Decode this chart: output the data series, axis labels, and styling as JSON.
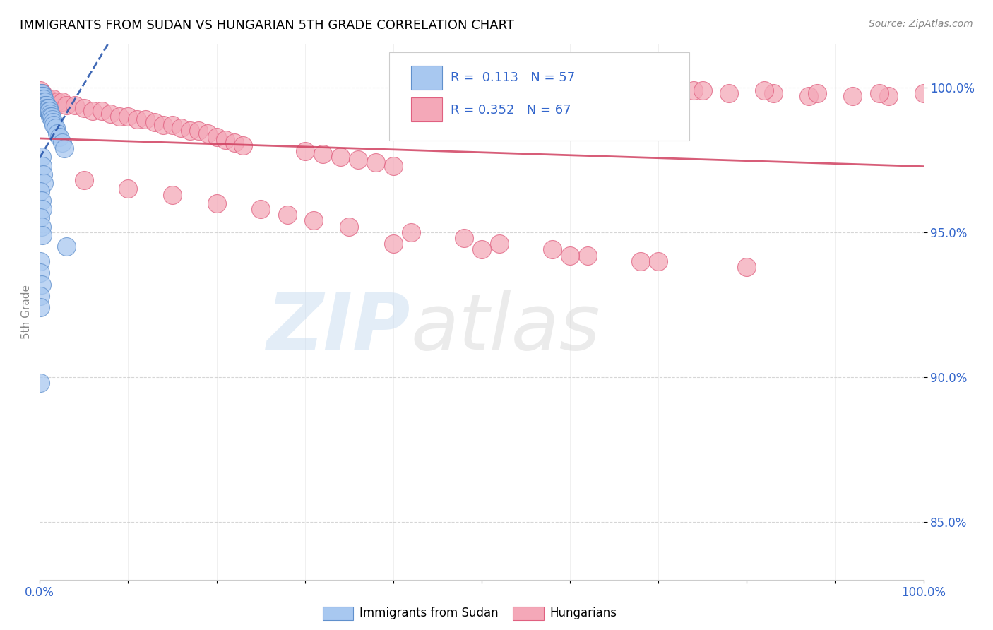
{
  "title": "IMMIGRANTS FROM SUDAN VS HUNGARIAN 5TH GRADE CORRELATION CHART",
  "source": "Source: ZipAtlas.com",
  "ylabel": "5th Grade",
  "yticks": [
    0.85,
    0.9,
    0.95,
    1.0
  ],
  "ytick_labels": [
    "85.0%",
    "90.0%",
    "95.0%",
    "100.0%"
  ],
  "xticks": [
    0.0,
    0.1,
    0.2,
    0.3,
    0.4,
    0.5,
    0.6,
    0.7,
    0.8,
    0.9,
    1.0
  ],
  "xlim": [
    0.0,
    1.0
  ],
  "ylim": [
    0.83,
    1.015
  ],
  "legend_r_blue": "R =  0.113",
  "legend_n_blue": "N = 57",
  "legend_r_pink": "R = 0.352",
  "legend_n_pink": "N = 67",
  "blue_color": "#A8C8F0",
  "pink_color": "#F4A8B8",
  "blue_edge": "#6090CC",
  "pink_edge": "#E06080",
  "trend_blue_color": "#2050AA",
  "trend_pink_color": "#D04060",
  "watermark_zip": "ZIP",
  "watermark_atlas": "atlas",
  "blue_x": [
    0.001,
    0.001,
    0.001,
    0.002,
    0.002,
    0.002,
    0.002,
    0.003,
    0.003,
    0.003,
    0.004,
    0.004,
    0.004,
    0.004,
    0.005,
    0.005,
    0.005,
    0.006,
    0.006,
    0.006,
    0.007,
    0.007,
    0.008,
    0.008,
    0.009,
    0.009,
    0.01,
    0.01,
    0.011,
    0.012,
    0.012,
    0.013,
    0.014,
    0.015,
    0.016,
    0.018,
    0.02,
    0.022,
    0.025,
    0.028,
    0.002,
    0.003,
    0.004,
    0.005,
    0.001,
    0.002,
    0.003,
    0.001,
    0.002,
    0.003,
    0.03,
    0.001,
    0.001,
    0.002,
    0.001,
    0.001,
    0.001
  ],
  "blue_y": [
    0.998,
    0.997,
    0.996,
    0.998,
    0.997,
    0.996,
    0.995,
    0.997,
    0.996,
    0.995,
    0.997,
    0.996,
    0.995,
    0.994,
    0.996,
    0.995,
    0.994,
    0.995,
    0.994,
    0.993,
    0.994,
    0.993,
    0.994,
    0.993,
    0.993,
    0.992,
    0.993,
    0.992,
    0.992,
    0.991,
    0.99,
    0.99,
    0.989,
    0.988,
    0.987,
    0.986,
    0.984,
    0.983,
    0.981,
    0.979,
    0.976,
    0.973,
    0.97,
    0.967,
    0.964,
    0.961,
    0.958,
    0.955,
    0.952,
    0.949,
    0.945,
    0.94,
    0.936,
    0.932,
    0.928,
    0.924,
    0.898
  ],
  "pink_x": [
    0.001,
    0.002,
    0.003,
    0.004,
    0.005,
    0.01,
    0.015,
    0.02,
    0.025,
    0.03,
    0.04,
    0.05,
    0.06,
    0.07,
    0.08,
    0.09,
    0.1,
    0.11,
    0.12,
    0.13,
    0.14,
    0.15,
    0.16,
    0.17,
    0.18,
    0.19,
    0.2,
    0.21,
    0.22,
    0.23,
    0.3,
    0.32,
    0.34,
    0.36,
    0.38,
    0.4,
    0.05,
    0.1,
    0.15,
    0.2,
    0.25,
    0.28,
    0.31,
    0.35,
    0.42,
    0.48,
    0.52,
    0.58,
    0.62,
    0.68,
    0.7,
    0.74,
    0.78,
    0.83,
    0.87,
    0.92,
    0.96,
    1.0,
    0.75,
    0.82,
    0.88,
    0.95,
    0.4,
    0.5,
    0.6,
    0.7,
    0.8
  ],
  "pink_y": [
    0.999,
    0.998,
    0.998,
    0.997,
    0.997,
    0.996,
    0.996,
    0.995,
    0.995,
    0.994,
    0.994,
    0.993,
    0.992,
    0.992,
    0.991,
    0.99,
    0.99,
    0.989,
    0.989,
    0.988,
    0.987,
    0.987,
    0.986,
    0.985,
    0.985,
    0.984,
    0.983,
    0.982,
    0.981,
    0.98,
    0.978,
    0.977,
    0.976,
    0.975,
    0.974,
    0.973,
    0.968,
    0.965,
    0.963,
    0.96,
    0.958,
    0.956,
    0.954,
    0.952,
    0.95,
    0.948,
    0.946,
    0.944,
    0.942,
    0.94,
    0.999,
    0.999,
    0.998,
    0.998,
    0.997,
    0.997,
    0.997,
    0.998,
    0.999,
    0.999,
    0.998,
    0.998,
    0.946,
    0.944,
    0.942,
    0.94,
    0.938
  ]
}
